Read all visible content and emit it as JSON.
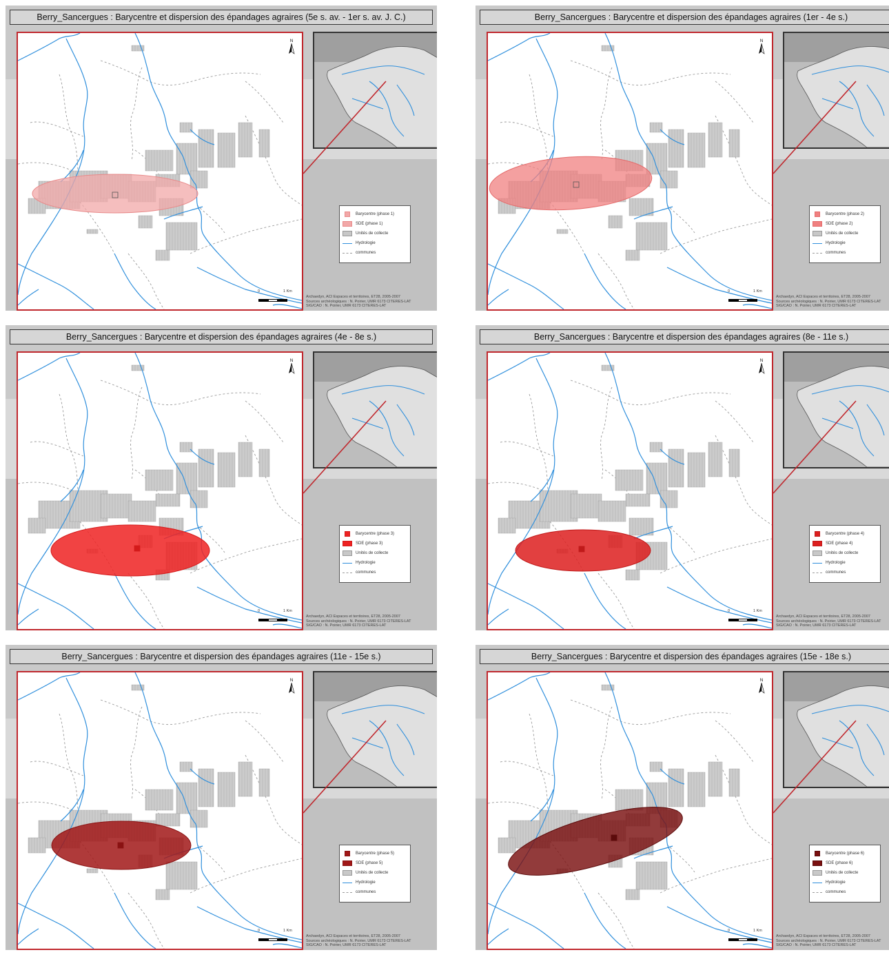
{
  "panels": [
    {
      "title": "Berry_Sancergues : Barycentre et dispersion des épandages agraires (5e s. av. - 1er s. av. J. C.)",
      "legend": [
        "Barycentre (phase 1)",
        "SDE (phase 1)",
        "Unités de collecte",
        "Hydrologie",
        "communes"
      ],
      "fill": "#f2a8a8",
      "stroke": "#e88a8a",
      "opacity": 0.75
    },
    {
      "title": "Berry_Sancergues : Barycentre et dispersion des épandages agraires (1er - 4e s.)",
      "legend": [
        "Barycentre (phase 2)",
        "SDE (phase 2)",
        "Unités de collecte",
        "Hydrologie",
        "communes"
      ],
      "fill": "#f08080",
      "stroke": "#e46a6a",
      "opacity": 0.75
    },
    {
      "title": "Berry_Sancergues : Barycentre et dispersion des épandages agraires (4e - 8e s.)",
      "legend": [
        "Barycentre (phase 3)",
        "SDE (phase 3)",
        "Unités de collecte",
        "Hydrologie",
        "communes"
      ],
      "fill": "#ee2222",
      "stroke": "#d41a1a",
      "opacity": 0.85
    },
    {
      "title": "Berry_Sancergues : Barycentre et dispersion des épandages agraires (8e - 11e s.)",
      "legend": [
        "Barycentre (phase 4)",
        "SDE (phase 4)",
        "Unités de collecte",
        "Hydrologie",
        "communes"
      ],
      "fill": "#dd1f1f",
      "stroke": "#c01a1a",
      "opacity": 0.85
    },
    {
      "title": "Berry_Sancergues : Barycentre et dispersion des épandages agraires (11e - 15e s.)",
      "legend": [
        "Barycentre (phase 5)",
        "SDE (phase 5)",
        "Unités de collecte",
        "Hydrologie",
        "communes"
      ],
      "fill": "#a11818",
      "stroke": "#8a1212",
      "opacity": 0.85
    },
    {
      "title": "Berry_Sancergues : Barycentre et dispersion des épandages agraires (15e - 18e s.)",
      "legend": [
        "Barycentre (phase 6)",
        "SDE (phase 6)",
        "Unités de collecte",
        "Hydrologie",
        "communes"
      ],
      "fill": "#7a1010",
      "stroke": "#5c0b0b",
      "opacity": 0.82
    }
  ],
  "scale": {
    "zero": "0",
    "km": "1 Km"
  },
  "north": "N",
  "credits": [
    "Archaedyn, ACI Espaces et territoires, ET28, 2005-2007",
    "Sources archéologiques : N. Poirier, UMR 6173 CITERES-LAT",
    "SIG/CAO : N. Poirier, UMR 6173 CITERES-LAT"
  ],
  "colors": {
    "river": "#2f8fdc",
    "frame": "#c0272d",
    "units": "#a9a9a9",
    "communes": "#9a9a9a"
  }
}
